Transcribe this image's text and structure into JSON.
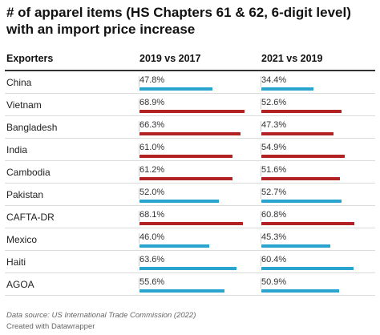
{
  "chart_data": {
    "type": "table",
    "title": "# of apparel items (HS Chapters 61 & 62, 6-digit level) with an import price increase",
    "columns": [
      "Exporters",
      "2019 vs 2017",
      "2021 vs 2019"
    ],
    "bar_max_percent": 100,
    "colors": {
      "blue": "#2ba3cf",
      "red": "#b22222"
    },
    "rows": [
      {
        "exporter": "China",
        "v2019": "47.8%",
        "n2019": 47.8,
        "c2019": "blue",
        "v2021": "34.4%",
        "n2021": 34.4,
        "c2021": "blue"
      },
      {
        "exporter": "Vietnam",
        "v2019": "68.9%",
        "n2019": 68.9,
        "c2019": "red",
        "v2021": "52.6%",
        "n2021": 52.6,
        "c2021": "red"
      },
      {
        "exporter": "Bangladesh",
        "v2019": "66.3%",
        "n2019": 66.3,
        "c2019": "red",
        "v2021": "47.3%",
        "n2021": 47.3,
        "c2021": "red"
      },
      {
        "exporter": "India",
        "v2019": "61.0%",
        "n2019": 61.0,
        "c2019": "red",
        "v2021": "54.9%",
        "n2021": 54.9,
        "c2021": "red"
      },
      {
        "exporter": "Cambodia",
        "v2019": "61.2%",
        "n2019": 61.2,
        "c2019": "red",
        "v2021": "51.6%",
        "n2021": 51.6,
        "c2021": "red"
      },
      {
        "exporter": "Pakistan",
        "v2019": "52.0%",
        "n2019": 52.0,
        "c2019": "blue",
        "v2021": "52.7%",
        "n2021": 52.7,
        "c2021": "blue"
      },
      {
        "exporter": "CAFTA-DR",
        "v2019": "68.1%",
        "n2019": 68.1,
        "c2019": "red",
        "v2021": "60.8%",
        "n2021": 60.8,
        "c2021": "red"
      },
      {
        "exporter": "Mexico",
        "v2019": "46.0%",
        "n2019": 46.0,
        "c2019": "blue",
        "v2021": "45.3%",
        "n2021": 45.3,
        "c2021": "blue"
      },
      {
        "exporter": "Haiti",
        "v2019": "63.6%",
        "n2019": 63.6,
        "c2019": "blue",
        "v2021": "60.4%",
        "n2021": 60.4,
        "c2021": "blue"
      },
      {
        "exporter": "AGOA",
        "v2019": "55.6%",
        "n2019": 55.6,
        "c2019": "blue",
        "v2021": "50.9%",
        "n2021": 50.9,
        "c2021": "blue"
      }
    ]
  },
  "footer": {
    "source": "Data source: US International Trade Commission (2022)",
    "credit": "Created with Datawrapper"
  }
}
